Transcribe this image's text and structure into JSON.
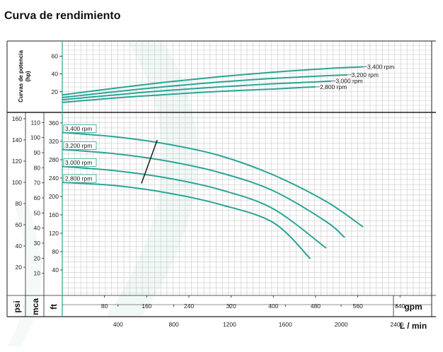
{
  "title": "Curva de rendimiento",
  "colors": {
    "curve": "#2aa594",
    "grid": "#c9c9c9",
    "frame": "#222222",
    "axisline": "#2aa594",
    "watermark": "#eef7f4"
  },
  "chart_data": [
    {
      "type": "line",
      "name": "power",
      "ylabel": "Curvas de potencia\n(hp)",
      "xlim": [
        0,
        700
      ],
      "ylim": [
        0,
        77
      ],
      "yticks": [
        20,
        40,
        60
      ],
      "series": [
        {
          "name": "3,400 rpm",
          "x": [
            0,
            100,
            200,
            300,
            400,
            500,
            570
          ],
          "y": [
            16.5,
            24,
            31,
            37,
            42,
            46,
            48
          ]
        },
        {
          "name": "3,200 rpm",
          "x": [
            0,
            100,
            200,
            300,
            400,
            500,
            540
          ],
          "y": [
            13.5,
            20,
            26,
            31,
            35,
            38,
            39
          ]
        },
        {
          "name": "3,000 rpm",
          "x": [
            0,
            100,
            200,
            300,
            400,
            480,
            510
          ],
          "y": [
            11,
            16.5,
            21.5,
            25.5,
            29,
            31,
            32
          ]
        },
        {
          "name": "2,800 rpm",
          "x": [
            0,
            100,
            200,
            300,
            400,
            460,
            480
          ],
          "y": [
            8,
            13,
            17,
            20.5,
            23,
            25,
            25.5
          ]
        }
      ]
    },
    {
      "type": "line",
      "name": "head",
      "xlim": [
        0,
        700
      ],
      "xlabel_gpm": "gpm",
      "xticks_gpm": [
        80,
        160,
        240,
        320,
        400,
        480,
        560,
        640
      ],
      "xlabel_lmin": "L / min",
      "xticks_lmin": [
        400,
        800,
        1200,
        1600,
        2000,
        2400
      ],
      "ylim_psi": [
        0,
        166
      ],
      "ylabel_psi": "psi",
      "yticks_psi": [
        20,
        40,
        60,
        80,
        100,
        120,
        140,
        160
      ],
      "ylabel_mca": "mca",
      "yticks_mca": [
        10,
        20,
        30,
        40,
        50,
        60,
        70,
        80,
        90,
        100,
        110
      ],
      "ylabel_ft": "ft",
      "yticks_ft": [
        40,
        80,
        120,
        160,
        200,
        240,
        280,
        320,
        360
      ],
      "series": [
        {
          "name": "3,400 rpm",
          "x": [
            0,
            100,
            200,
            300,
            400,
            500,
            570
          ],
          "y": [
            147,
            143,
            136,
            125,
            107,
            82,
            58
          ]
        },
        {
          "name": "3,200 rpm",
          "x": [
            0,
            100,
            200,
            300,
            400,
            500,
            535
          ],
          "y": [
            131,
            127,
            120,
            109,
            92,
            63,
            48
          ]
        },
        {
          "name": "3,000 rpm",
          "x": [
            0,
            100,
            200,
            300,
            400,
            500
          ],
          "y": [
            115,
            111,
            104,
            93,
            75,
            38
          ]
        },
        {
          "name": "2,800 rpm",
          "x": [
            0,
            100,
            200,
            300,
            400,
            470
          ],
          "y": [
            100,
            97,
            90,
            79,
            62,
            28
          ]
        }
      ],
      "operating_line": {
        "x": [
          180,
          150
        ],
        "y": [
          140,
          99
        ]
      }
    }
  ]
}
